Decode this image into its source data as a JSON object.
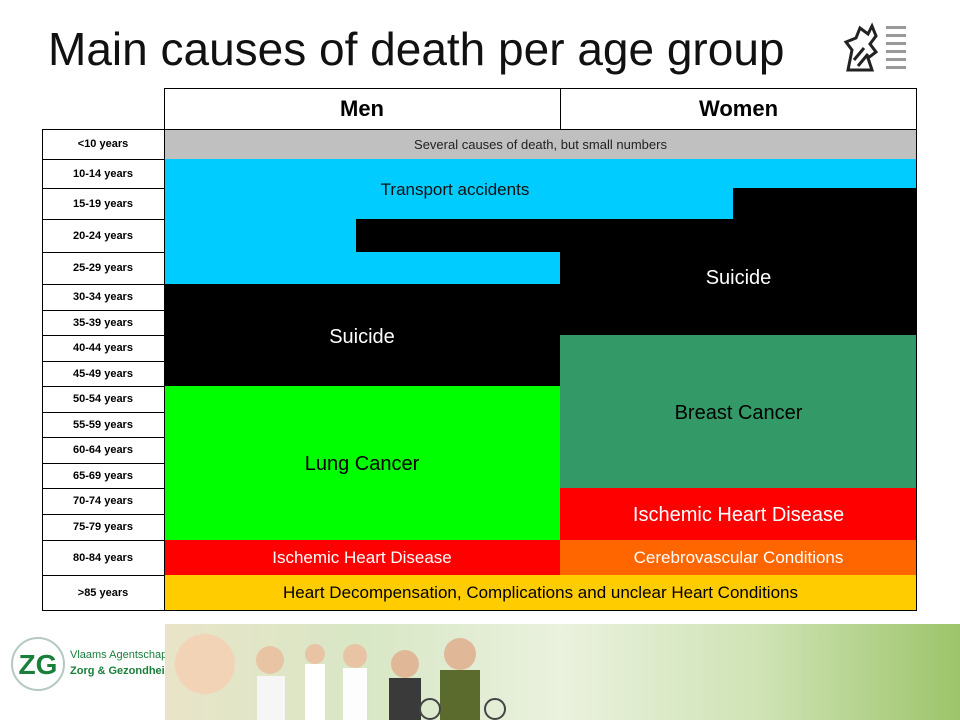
{
  "title": "Main causes of death per age group",
  "headers": {
    "men": "Men",
    "women": "Women"
  },
  "age_groups": [
    "<10 years",
    "10-14 years",
    "15-19 years",
    "20-24 years",
    "25-29 years",
    "30-34 years",
    "35-39 years",
    "40-44 years",
    "45-49 years",
    "50-54 years",
    "55-59 years",
    "60-64 years",
    "65-69 years",
    "70-74 years",
    "75-79 years",
    "80-84 years",
    ">85 years"
  ],
  "causes": {
    "several": "Several causes of death, but small numbers",
    "transport": "Transport accidents",
    "suicide_women": "Suicide",
    "suicide_men": "Suicide",
    "breast": "Breast Cancer",
    "lung": "Lung Cancer",
    "ihd_women": "Ischemic Heart Disease",
    "ihd_men": "Ischemic Heart Disease",
    "cerebro": "Cerebrovascular Conditions",
    "heart": "Heart Decompensation, Complications and unclear Heart Conditions"
  },
  "footer": {
    "line1": "Vlaams Agentschap",
    "line2": "Zorg & Gezondheid",
    "logo_text": "ZG"
  },
  "colors": {
    "grey": "#c0c0c0",
    "blue": "#00ccff",
    "black": "#000000",
    "green": "#00ff00",
    "teal": "#339966",
    "red": "#ff0000",
    "orange": "#ff6600",
    "yellow": "#ffcc00",
    "zg_green": "#1a7f3a"
  }
}
